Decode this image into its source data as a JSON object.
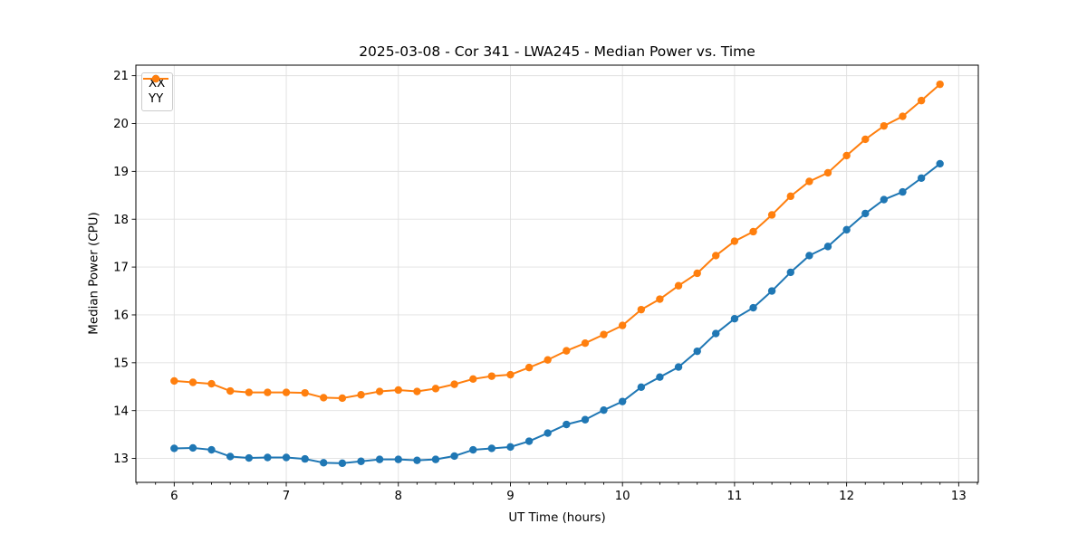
{
  "chart_data": {
    "type": "line",
    "title": "2025-03-08 - Cor 341 - LWA245 - Median Power vs. Time",
    "xlabel": "UT Time (hours)",
    "ylabel": "Median Power (CPU)",
    "xlim": [
      5.658,
      13.175
    ],
    "ylim": [
      12.5,
      21.22
    ],
    "xticks": [
      6,
      7,
      8,
      9,
      10,
      11,
      12,
      13
    ],
    "yticks": [
      13,
      14,
      15,
      16,
      17,
      18,
      19,
      20,
      21
    ],
    "x_minor_step_hours": 0.1667,
    "grid": true,
    "grid_color": "#e0e0e0",
    "legend_position": "upper-left",
    "x": [
      6.0,
      6.167,
      6.333,
      6.5,
      6.667,
      6.833,
      7.0,
      7.167,
      7.333,
      7.5,
      7.667,
      7.833,
      8.0,
      8.167,
      8.333,
      8.5,
      8.667,
      8.833,
      9.0,
      9.167,
      9.333,
      9.5,
      9.667,
      9.833,
      10.0,
      10.167,
      10.333,
      10.5,
      10.667,
      10.833,
      11.0,
      11.167,
      11.333,
      11.5,
      11.667,
      11.833,
      12.0,
      12.167,
      12.333,
      12.5,
      12.667,
      12.833
    ],
    "series": [
      {
        "name": "XX",
        "color": "#1f77b4",
        "marker": "circle",
        "values": [
          13.21,
          13.22,
          13.18,
          13.04,
          13.01,
          13.02,
          13.02,
          12.99,
          12.91,
          12.9,
          12.94,
          12.98,
          12.98,
          12.96,
          12.98,
          13.05,
          13.18,
          13.21,
          13.24,
          13.36,
          13.53,
          13.71,
          13.81,
          14.01,
          14.19,
          14.49,
          14.7,
          14.91,
          15.24,
          15.61,
          15.92,
          16.15,
          16.5,
          16.89,
          17.24,
          17.43,
          17.78,
          18.12,
          18.41,
          18.57,
          18.86,
          19.16
        ]
      },
      {
        "name": "YY",
        "color": "#ff7f0e",
        "marker": "circle",
        "values": [
          14.62,
          14.59,
          14.56,
          14.41,
          14.38,
          14.38,
          14.38,
          14.37,
          14.27,
          14.26,
          14.33,
          14.4,
          14.43,
          14.4,
          14.46,
          14.55,
          14.66,
          14.72,
          14.75,
          14.9,
          15.06,
          15.25,
          15.41,
          15.59,
          15.78,
          16.11,
          16.33,
          16.61,
          16.87,
          17.24,
          17.54,
          17.74,
          18.09,
          18.48,
          18.79,
          18.97,
          19.33,
          19.67,
          19.95,
          20.15,
          20.48,
          20.82
        ]
      }
    ]
  }
}
